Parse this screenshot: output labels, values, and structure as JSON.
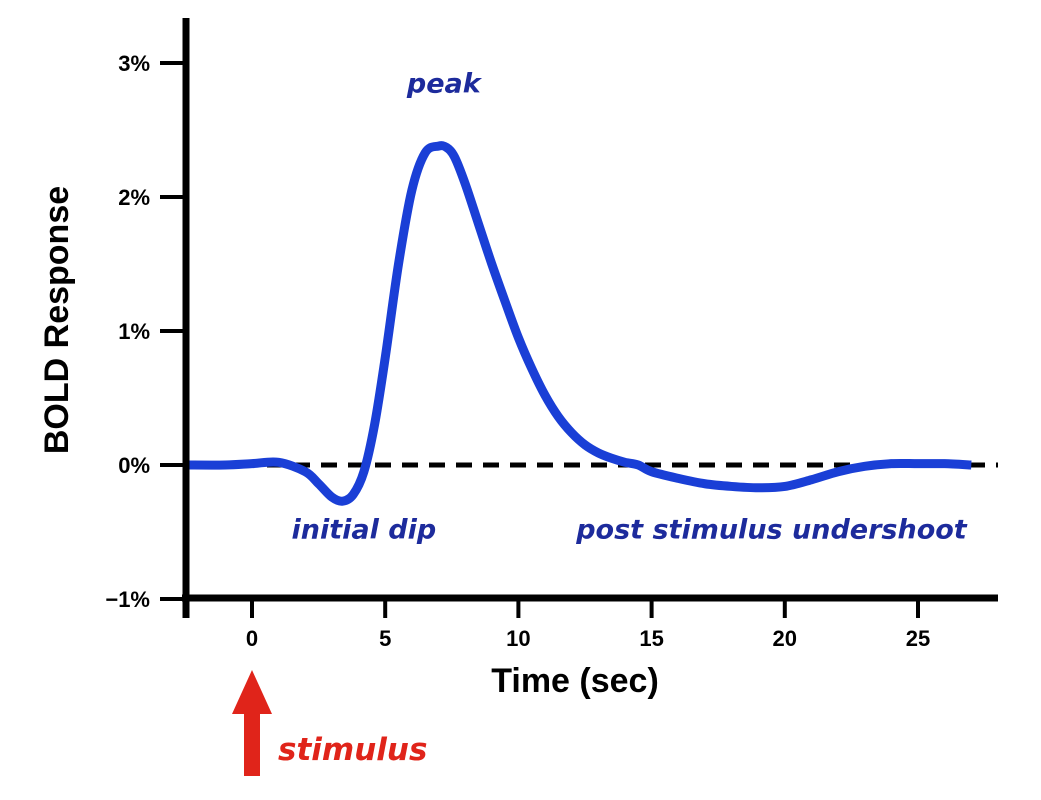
{
  "chart_data": {
    "type": "line",
    "title": "",
    "xlabel": "Time (sec)",
    "ylabel": "BOLD Response",
    "xlim": [
      -2.5,
      28
    ],
    "ylim": [
      -1,
      3.3
    ],
    "x_ticks": [
      {
        "value": 0,
        "label": "0"
      },
      {
        "value": 5,
        "label": "5"
      },
      {
        "value": 10,
        "label": "10"
      },
      {
        "value": 15,
        "label": "15"
      },
      {
        "value": 20,
        "label": "20"
      },
      {
        "value": 25,
        "label": "25"
      }
    ],
    "y_ticks": [
      {
        "value": -1,
        "label": "−1%"
      },
      {
        "value": 0,
        "label": "0%"
      },
      {
        "value": 1,
        "label": "1%"
      },
      {
        "value": 2,
        "label": "2%"
      },
      {
        "value": 3,
        "label": "3%"
      }
    ],
    "grid": false,
    "baseline": {
      "y": 0,
      "style": "dashed",
      "color": "#000000"
    },
    "series": [
      {
        "name": "",
        "color": "#1a3fd6",
        "x": [
          -2.5,
          -1,
          0,
          1,
          2,
          2.5,
          3,
          3.4,
          3.8,
          4.2,
          4.6,
          5,
          5.5,
          6,
          6.5,
          7,
          7.3,
          7.6,
          8,
          8.5,
          9,
          9.5,
          10,
          10.5,
          11,
          11.5,
          12,
          12.5,
          13,
          13.5,
          14,
          14.5,
          15,
          16,
          17,
          18,
          19,
          20,
          21,
          22,
          23,
          24,
          25,
          26,
          27
        ],
        "values": [
          0,
          0,
          0.01,
          0.02,
          -0.05,
          -0.14,
          -0.24,
          -0.27,
          -0.22,
          -0.05,
          0.3,
          0.8,
          1.5,
          2.05,
          2.33,
          2.38,
          2.37,
          2.3,
          2.1,
          1.8,
          1.5,
          1.22,
          0.95,
          0.72,
          0.52,
          0.36,
          0.24,
          0.15,
          0.09,
          0.05,
          0.02,
          0,
          -0.05,
          -0.1,
          -0.14,
          -0.16,
          -0.17,
          -0.16,
          -0.11,
          -0.05,
          -0.01,
          0.01,
          0.01,
          0.01,
          0.0
        ]
      }
    ],
    "annotations": [
      {
        "text": "peak",
        "x": 7.2,
        "y": 2.78,
        "color": "#1d2b9c"
      },
      {
        "text": "initial dip",
        "x": 4.2,
        "y": -0.55,
        "color": "#1d2b9c"
      },
      {
        "text": "post stimulus undershoot",
        "x": 19.5,
        "y": -0.55,
        "color": "#1d2b9c"
      }
    ],
    "stimulus": {
      "text": "stimulus",
      "x": 0,
      "color": "#e0241a"
    }
  }
}
